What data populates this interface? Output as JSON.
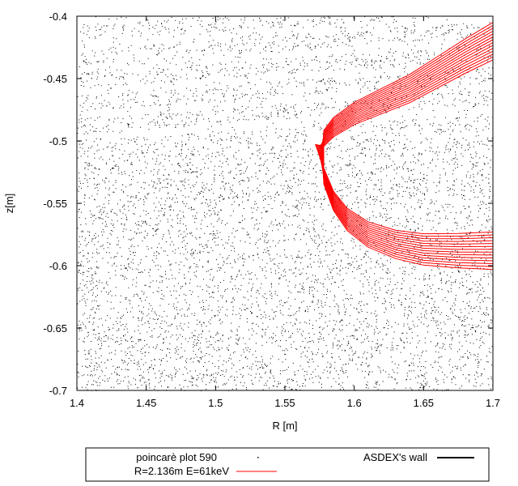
{
  "chart_data": {
    "type": "scatter",
    "xlabel": "R [m]",
    "ylabel": "z[m]",
    "xlim": [
      1.4,
      1.7
    ],
    "ylim": [
      -0.7,
      -0.4
    ],
    "x_ticks": [
      "1.4",
      "1.45",
      "1.5",
      "1.55",
      "1.6",
      "1.65",
      "1.7"
    ],
    "y_ticks": [
      "-0.4",
      "-0.45",
      "-0.5",
      "-0.55",
      "-0.6",
      "-0.65",
      "-0.7"
    ],
    "legend_position": "bottom",
    "legend": [
      {
        "label": "poincarè plot 590",
        "style": "dots",
        "color": "#000000"
      },
      {
        "label": "ASDEX's wall",
        "style": "line",
        "color": "#000000"
      },
      {
        "label": "R=2.136m E=61keV",
        "style": "line",
        "color": "#ff0000"
      }
    ],
    "series": [
      {
        "name": "poincarè plot 590",
        "kind": "dots",
        "color": "#000000",
        "note": "dense field-line puncture points filling the whole plot area",
        "x_range": [
          1.4,
          1.7
        ],
        "y_range": [
          -0.7,
          -0.4
        ]
      },
      {
        "name": "R=2.136m E=61keV",
        "kind": "orbit-band",
        "color": "#ff0000",
        "upper_branch": {
          "x": [
            1.7,
            1.68,
            1.66,
            1.64,
            1.62,
            1.6,
            1.585,
            1.578,
            1.575
          ],
          "y": [
            -0.42,
            -0.432,
            -0.445,
            -0.458,
            -0.468,
            -0.478,
            -0.489,
            -0.498,
            -0.508
          ]
        },
        "lower_branch": {
          "x": [
            1.575,
            1.578,
            1.585,
            1.595,
            1.61,
            1.63,
            1.65,
            1.675,
            1.7
          ],
          "y": [
            -0.508,
            -0.528,
            -0.548,
            -0.563,
            -0.575,
            -0.583,
            -0.587,
            -0.588,
            -0.588
          ]
        },
        "band_width_z": 0.03
      }
    ]
  }
}
